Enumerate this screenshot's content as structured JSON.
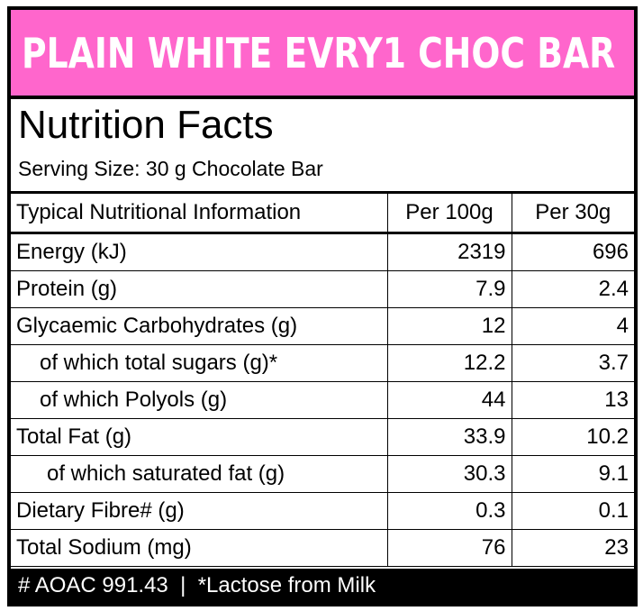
{
  "banner": {
    "title": "PLAIN WHITE EVRY1 CHOC BAR"
  },
  "facts": {
    "title": "Nutrition Facts",
    "serving": "Serving Size: 30 g Chocolate Bar"
  },
  "table": {
    "headers": [
      "Typical Nutritional Information",
      "Per 100g",
      "Per 30g"
    ],
    "rows": [
      {
        "label": "Energy (kJ)",
        "per100": "2319",
        "per30": "696"
      },
      {
        "label": "Protein (g)",
        "per100": "7.9",
        "per30": "2.4"
      },
      {
        "label": "Glycaemic Carbohydrates (g)",
        "per100": "12",
        "per30": "4"
      },
      {
        "label": "of which total sugars (g)*",
        "per100": "12.2",
        "per30": "3.7"
      },
      {
        "label": "of which Polyols (g)",
        "per100": "44",
        "per30": "13"
      },
      {
        "label": "Total Fat (g)",
        "per100": "33.9",
        "per30": "10.2"
      },
      {
        "label": "of which saturated fat (g)",
        "per100": "30.3",
        "per30": "9.1"
      },
      {
        "label": "Dietary Fibre# (g)",
        "per100": "0.3",
        "per30": "0.1"
      },
      {
        "label": "Total Sodium (mg)",
        "per100": "76",
        "per30": "23"
      }
    ]
  },
  "footer": {
    "text": "# AOAC 991.43  |  *Lactose from Milk"
  },
  "colors": {
    "banner": "#ff66cc",
    "border": "#000000",
    "footer_bg": "#000000"
  }
}
